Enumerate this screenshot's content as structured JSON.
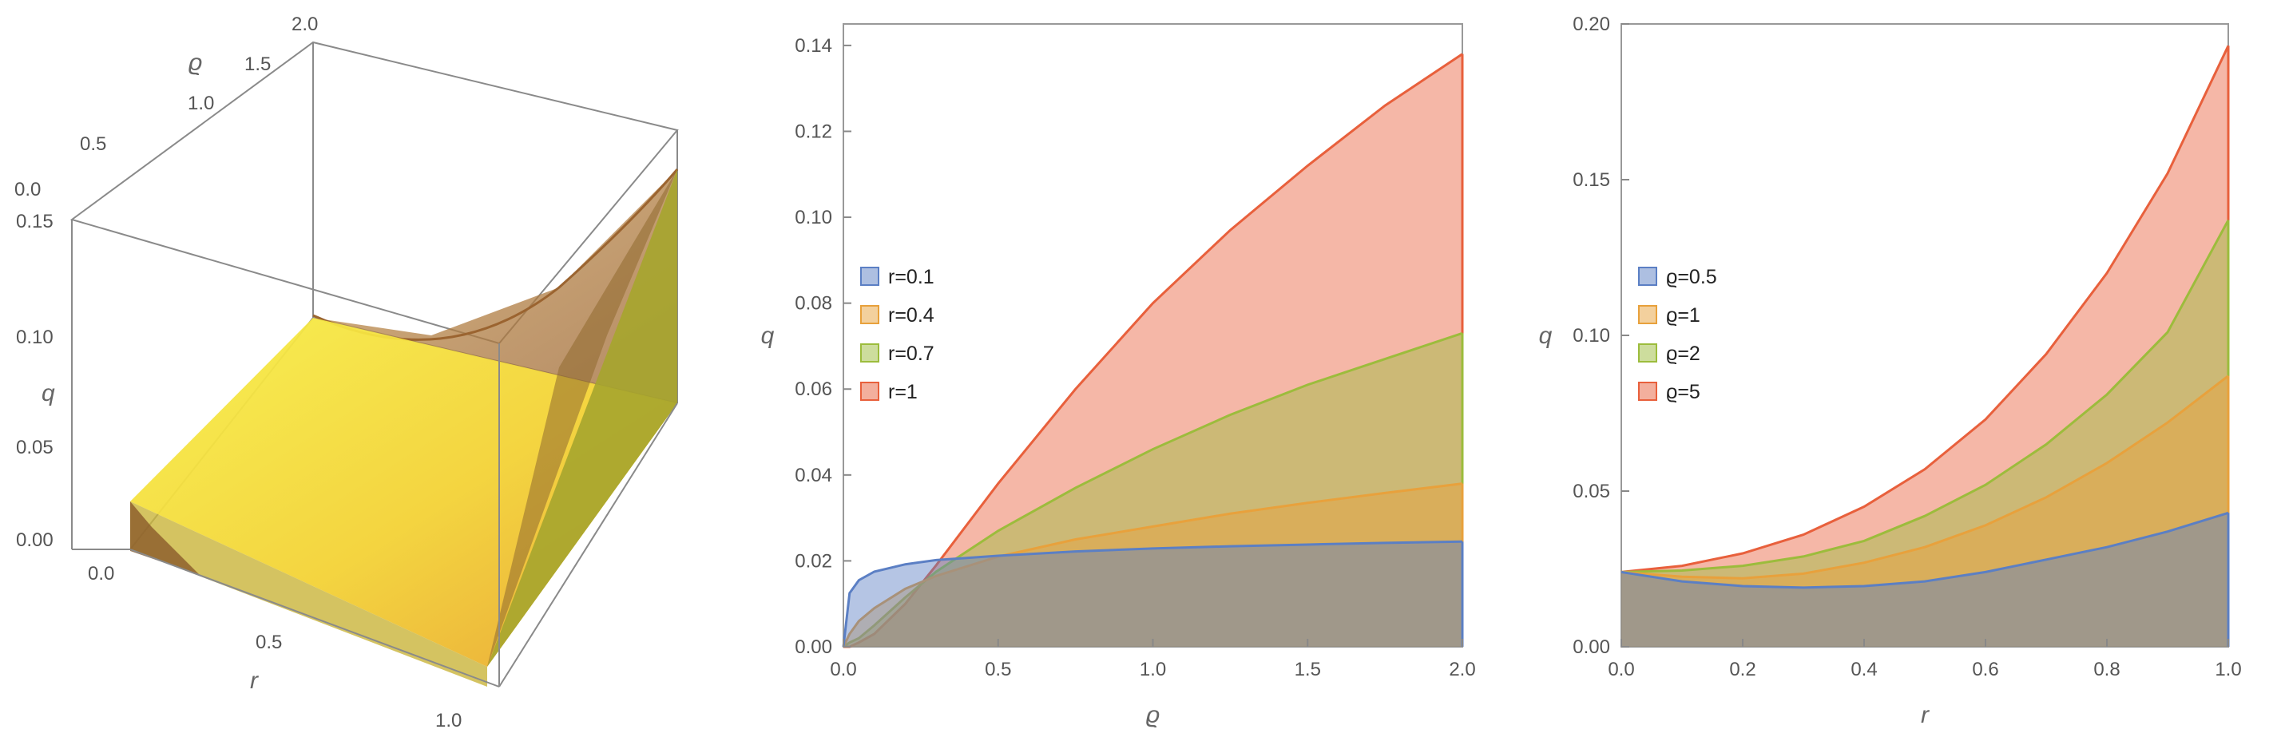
{
  "chart_data": [
    {
      "type": "surface3d",
      "title": "",
      "axes": {
        "x": {
          "label": "r",
          "ticks": [
            "0.0",
            "0.5",
            "1.0"
          ],
          "range": [
            0,
            1
          ]
        },
        "y": {
          "label": "ϱ",
          "ticks": [
            "0.0",
            "0.5",
            "1.0",
            "1.5",
            "2.0"
          ],
          "range": [
            0,
            2
          ]
        },
        "z": {
          "label": "q",
          "ticks": [
            "0.00",
            "0.05",
            "0.10",
            "0.15"
          ],
          "range": [
            0,
            0.15
          ]
        }
      },
      "colors": {
        "surface": "#f2e83a",
        "surface_dark": "#b8772e",
        "box": "#888888"
      }
    },
    {
      "type": "area",
      "xlabel": "ϱ",
      "ylabel": "q",
      "xlim": [
        0,
        2
      ],
      "ylim": [
        0,
        0.145
      ],
      "xticks": [
        0,
        0.5,
        1.0,
        1.5,
        2.0
      ],
      "xtick_labels": [
        "0.0",
        "0.5",
        "1.0",
        "1.5",
        "2.0"
      ],
      "yticks": [
        0,
        0.02,
        0.04,
        0.06,
        0.08,
        0.1,
        0.12,
        0.14
      ],
      "ytick_labels": [
        "0.00",
        "0.02",
        "0.04",
        "0.06",
        "0.08",
        "0.10",
        "0.12",
        "0.14"
      ],
      "legend_position": "left-middle",
      "x": [
        0,
        0.02,
        0.05,
        0.1,
        0.2,
        0.3,
        0.5,
        0.75,
        1.0,
        1.25,
        1.5,
        1.75,
        2.0
      ],
      "series": [
        {
          "name": "r=0.1",
          "color": "#5b7fc4",
          "values": [
            0,
            0.0125,
            0.0155,
            0.0175,
            0.0192,
            0.0202,
            0.0212,
            0.0222,
            0.0229,
            0.0234,
            0.0238,
            0.0242,
            0.0245
          ]
        },
        {
          "name": "r=0.4",
          "color": "#e8a13c",
          "values": [
            0,
            0.003,
            0.006,
            0.009,
            0.0135,
            0.0165,
            0.021,
            0.025,
            0.028,
            0.031,
            0.0335,
            0.0358,
            0.038
          ]
        },
        {
          "name": "r=0.7",
          "color": "#9cbc3c",
          "values": [
            0,
            0.001,
            0.002,
            0.005,
            0.0115,
            0.0175,
            0.027,
            0.037,
            0.046,
            0.054,
            0.061,
            0.067,
            0.073
          ]
        },
        {
          "name": "r=1",
          "color": "#e8603c",
          "values": [
            0,
            0,
            0.001,
            0.003,
            0.01,
            0.019,
            0.038,
            0.06,
            0.08,
            0.097,
            0.112,
            0.126,
            0.138
          ]
        }
      ]
    },
    {
      "type": "area",
      "xlabel": "r",
      "ylabel": "q",
      "xlim": [
        0,
        1
      ],
      "ylim": [
        0,
        0.2
      ],
      "xticks": [
        0,
        0.2,
        0.4,
        0.6,
        0.8,
        1.0
      ],
      "xtick_labels": [
        "0.0",
        "0.2",
        "0.4",
        "0.6",
        "0.8",
        "1.0"
      ],
      "yticks": [
        0,
        0.05,
        0.1,
        0.15,
        0.2
      ],
      "ytick_labels": [
        "0.00",
        "0.05",
        "0.10",
        "0.15",
        "0.20"
      ],
      "legend_position": "left-middle",
      "x": [
        0,
        0.1,
        0.2,
        0.3,
        0.4,
        0.5,
        0.6,
        0.7,
        0.8,
        0.9,
        1.0
      ],
      "series": [
        {
          "name": "ϱ=0.5",
          "color": "#5b7fc4",
          "values": [
            0.024,
            0.021,
            0.0195,
            0.019,
            0.0195,
            0.021,
            0.024,
            0.028,
            0.032,
            0.037,
            0.043
          ]
        },
        {
          "name": "ϱ=1",
          "color": "#e8a13c",
          "values": [
            0.024,
            0.0225,
            0.022,
            0.0235,
            0.027,
            0.032,
            0.039,
            0.048,
            0.059,
            0.072,
            0.087
          ]
        },
        {
          "name": "ϱ=2",
          "color": "#9cbc3c",
          "values": [
            0.024,
            0.0245,
            0.026,
            0.029,
            0.034,
            0.042,
            0.052,
            0.065,
            0.081,
            0.101,
            0.137
          ]
        },
        {
          "name": "ϱ=5",
          "color": "#e8603c",
          "values": [
            0.024,
            0.026,
            0.03,
            0.036,
            0.045,
            0.057,
            0.073,
            0.094,
            0.12,
            0.152,
            0.193
          ]
        }
      ]
    }
  ]
}
